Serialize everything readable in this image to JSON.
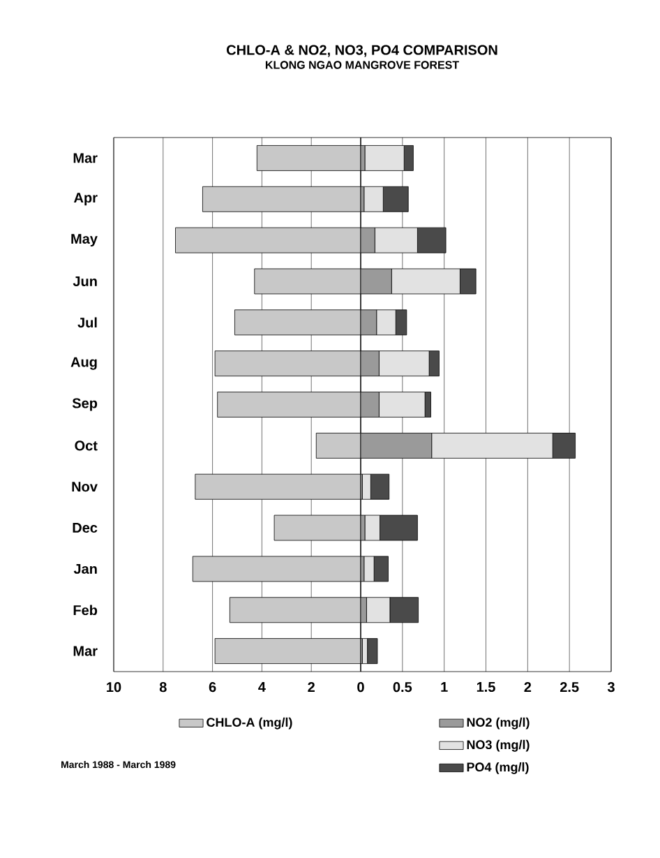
{
  "chart_data": [
    {
      "type": "bar",
      "orientation": "horizontal",
      "title": "CHLO-A & NO2, NO3, PO4 COMPARISON",
      "subtitle": "KLONG NGAO MANGROVE FOREST",
      "annotations": [
        "March 1988 - March 1989"
      ],
      "categories": [
        "Mar",
        "Apr",
        "May",
        "Jun",
        "Jul",
        "Aug",
        "Sep",
        "Oct",
        "Nov",
        "Dec",
        "Jan",
        "Feb",
        "Mar"
      ],
      "series": [
        {
          "name": "CHLO-A (mg/l)",
          "color": "#c8c8c8",
          "values": [
            4.2,
            6.4,
            7.5,
            4.3,
            5.1,
            5.9,
            5.8,
            1.8,
            6.7,
            3.5,
            6.8,
            5.3,
            5.9
          ]
        }
      ],
      "xlim": [
        10,
        0
      ],
      "xticks": [
        10,
        8,
        6,
        4,
        2,
        0
      ],
      "grid": "x",
      "legend": "bottom"
    },
    {
      "type": "bar",
      "orientation": "horizontal",
      "stacked": true,
      "series": [
        {
          "name": "NO2 (mg/l)",
          "color": "#9a9a9a",
          "values": [
            0.05,
            0.04,
            0.17,
            0.37,
            0.19,
            0.22,
            0.22,
            0.85,
            0.02,
            0.05,
            0.04,
            0.07,
            0.02
          ]
        },
        {
          "name": "NO3 (mg/l)",
          "color": "#e2e2e2",
          "values": [
            0.47,
            0.23,
            0.51,
            0.82,
            0.23,
            0.6,
            0.55,
            1.45,
            0.1,
            0.18,
            0.12,
            0.28,
            0.06
          ]
        },
        {
          "name": "PO4 (mg/l)",
          "color": "#4a4a4a",
          "values": [
            0.11,
            0.3,
            0.34,
            0.19,
            0.13,
            0.12,
            0.07,
            0.27,
            0.22,
            0.45,
            0.17,
            0.34,
            0.12
          ]
        }
      ],
      "xlim": [
        0,
        3
      ],
      "xticks": [
        {
          "value": 0,
          "label": null
        },
        0.5,
        1,
        1.5,
        2,
        2.5,
        3
      ],
      "grid": "x",
      "legend": "bottom",
      "tick_labels": "x"
    }
  ]
}
